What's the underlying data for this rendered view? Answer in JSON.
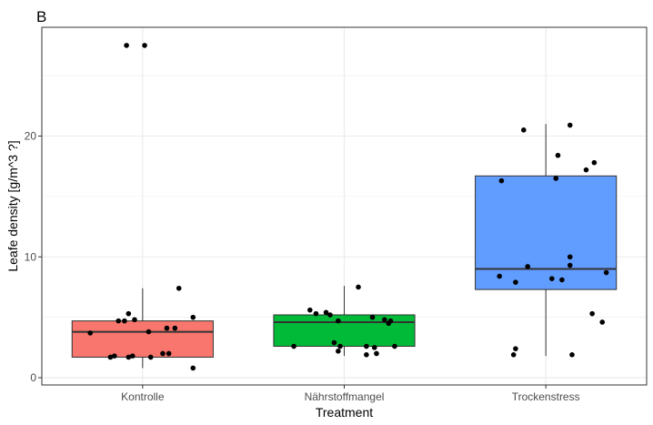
{
  "chart_data": {
    "type": "boxplot",
    "panel_tag": "B",
    "xlabel": "Treatment",
    "ylabel": "Leafe density [g/m^3 ?]",
    "ylim": [
      -0.6,
      29.0
    ],
    "yticks": [
      0,
      10,
      20
    ],
    "grid": true,
    "legend": "none",
    "categories": [
      "Kontrolle",
      "Nährstoffmangel",
      "Trockenstress"
    ],
    "fill_colors": [
      "#F8766D",
      "#00BA38",
      "#619CFF"
    ],
    "boxes": [
      {
        "category": "Kontrolle",
        "q1": 1.7,
        "median": 3.8,
        "q3": 4.7,
        "whisker_low": 0.8,
        "whisker_high": 7.4
      },
      {
        "category": "Nährstoffmangel",
        "q1": 2.6,
        "median": 4.6,
        "q3": 5.2,
        "whisker_low": 1.8,
        "whisker_high": 7.6
      },
      {
        "category": "Trockenstress",
        "q1": 7.3,
        "median": 9.0,
        "q3": 16.7,
        "whisker_low": 1.8,
        "whisker_high": 21.0
      }
    ],
    "points": [
      {
        "category": "Kontrolle",
        "jitter": [
          [
            -0.08,
            27.5
          ],
          [
            0.01,
            27.5
          ],
          [
            -0.07,
            5.3
          ],
          [
            -0.12,
            4.7
          ],
          [
            -0.09,
            4.7
          ],
          [
            -0.04,
            4.8
          ],
          [
            0.18,
            7.4
          ],
          [
            0.25,
            5.0
          ],
          [
            0.12,
            4.1
          ],
          [
            0.16,
            4.1
          ],
          [
            -0.26,
            3.7
          ],
          [
            0.03,
            3.8
          ],
          [
            -0.16,
            1.7
          ],
          [
            -0.14,
            1.8
          ],
          [
            -0.07,
            1.7
          ],
          [
            -0.05,
            1.8
          ],
          [
            0.04,
            1.7
          ],
          [
            0.1,
            2.0
          ],
          [
            0.13,
            2.0
          ],
          [
            0.25,
            0.8
          ]
        ]
      },
      {
        "category": "Nährstoffmangel",
        "jitter": [
          [
            0.07,
            7.5
          ],
          [
            -0.17,
            5.6
          ],
          [
            -0.14,
            5.3
          ],
          [
            -0.09,
            5.4
          ],
          [
            -0.07,
            5.2
          ],
          [
            0.14,
            5.0
          ],
          [
            0.2,
            4.8
          ],
          [
            0.22,
            4.5
          ],
          [
            0.23,
            4.7
          ],
          [
            -0.03,
            4.7
          ],
          [
            -0.25,
            2.6
          ],
          [
            -0.05,
            2.9
          ],
          [
            -0.02,
            2.6
          ],
          [
            0.11,
            2.6
          ],
          [
            0.15,
            2.5
          ],
          [
            0.25,
            2.6
          ],
          [
            -0.03,
            2.2
          ],
          [
            0.16,
            2.0
          ],
          [
            0.11,
            1.9
          ]
        ]
      },
      {
        "category": "Trockenstress",
        "jitter": [
          [
            0.12,
            20.9
          ],
          [
            -0.11,
            20.5
          ],
          [
            0.06,
            18.4
          ],
          [
            0.24,
            17.8
          ],
          [
            0.2,
            17.2
          ],
          [
            -0.22,
            16.3
          ],
          [
            0.05,
            16.5
          ],
          [
            0.12,
            10.0
          ],
          [
            0.12,
            9.3
          ],
          [
            -0.09,
            9.2
          ],
          [
            0.3,
            8.7
          ],
          [
            -0.23,
            8.4
          ],
          [
            0.03,
            8.2
          ],
          [
            0.08,
            8.1
          ],
          [
            -0.15,
            7.9
          ],
          [
            0.23,
            5.3
          ],
          [
            0.28,
            4.6
          ],
          [
            -0.15,
            2.4
          ],
          [
            -0.16,
            1.9
          ],
          [
            0.13,
            1.9
          ]
        ]
      }
    ]
  }
}
